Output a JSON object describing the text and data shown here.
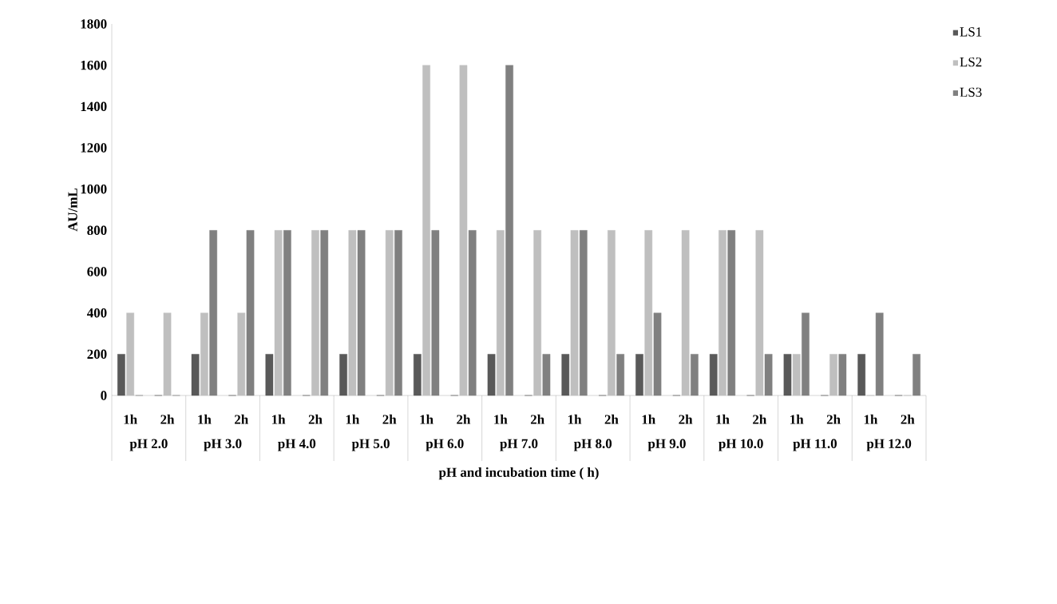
{
  "chart_data": {
    "type": "bar",
    "xlabel": "pH and incubation time ( h)",
    "ylabel": "AU/mL",
    "categories": [
      "1h",
      "2h",
      "1h",
      "2h",
      "1h",
      "2h",
      "1h",
      "2h",
      "1h",
      "2h",
      "1h",
      "2h",
      "1h",
      "2h",
      "1h",
      "2h",
      "1h",
      "2h",
      "1h",
      "2h",
      "1h",
      "2h"
    ],
    "series": [
      {
        "name": "LS1",
        "color": "#595959",
        "values": [
          200,
          0,
          200,
          0,
          200,
          0,
          200,
          0,
          200,
          0,
          200,
          0,
          200,
          0,
          200,
          0,
          200,
          0,
          200,
          0,
          200,
          0
        ]
      },
      {
        "name": "LS2",
        "color": "#bfbfbf",
        "values": [
          400,
          400,
          400,
          400,
          800,
          800,
          800,
          800,
          1600,
          1600,
          800,
          800,
          800,
          800,
          800,
          800,
          800,
          800,
          200,
          200,
          0,
          0
        ]
      },
      {
        "name": "LS3",
        "color": "#808080",
        "values": [
          0,
          0,
          800,
          800,
          800,
          800,
          800,
          800,
          800,
          800,
          1600,
          200,
          800,
          200,
          400,
          200,
          800,
          200,
          400,
          200,
          400,
          200
        ]
      }
    ],
    "ylim": [
      0,
      1800
    ],
    "yticks": [
      0,
      200,
      400,
      600,
      800,
      1000,
      1200,
      1400,
      1600,
      1800
    ],
    "annotations": [
      "pH 2.0",
      "pH 3.0",
      "pH 4.0",
      "pH 5.0",
      "pH 6.0",
      "pH 7.0",
      "pH 8.0",
      "pH 9.0",
      "pH 10.0",
      "pH 11.0",
      "pH 12.0"
    ],
    "legend": "top right"
  }
}
